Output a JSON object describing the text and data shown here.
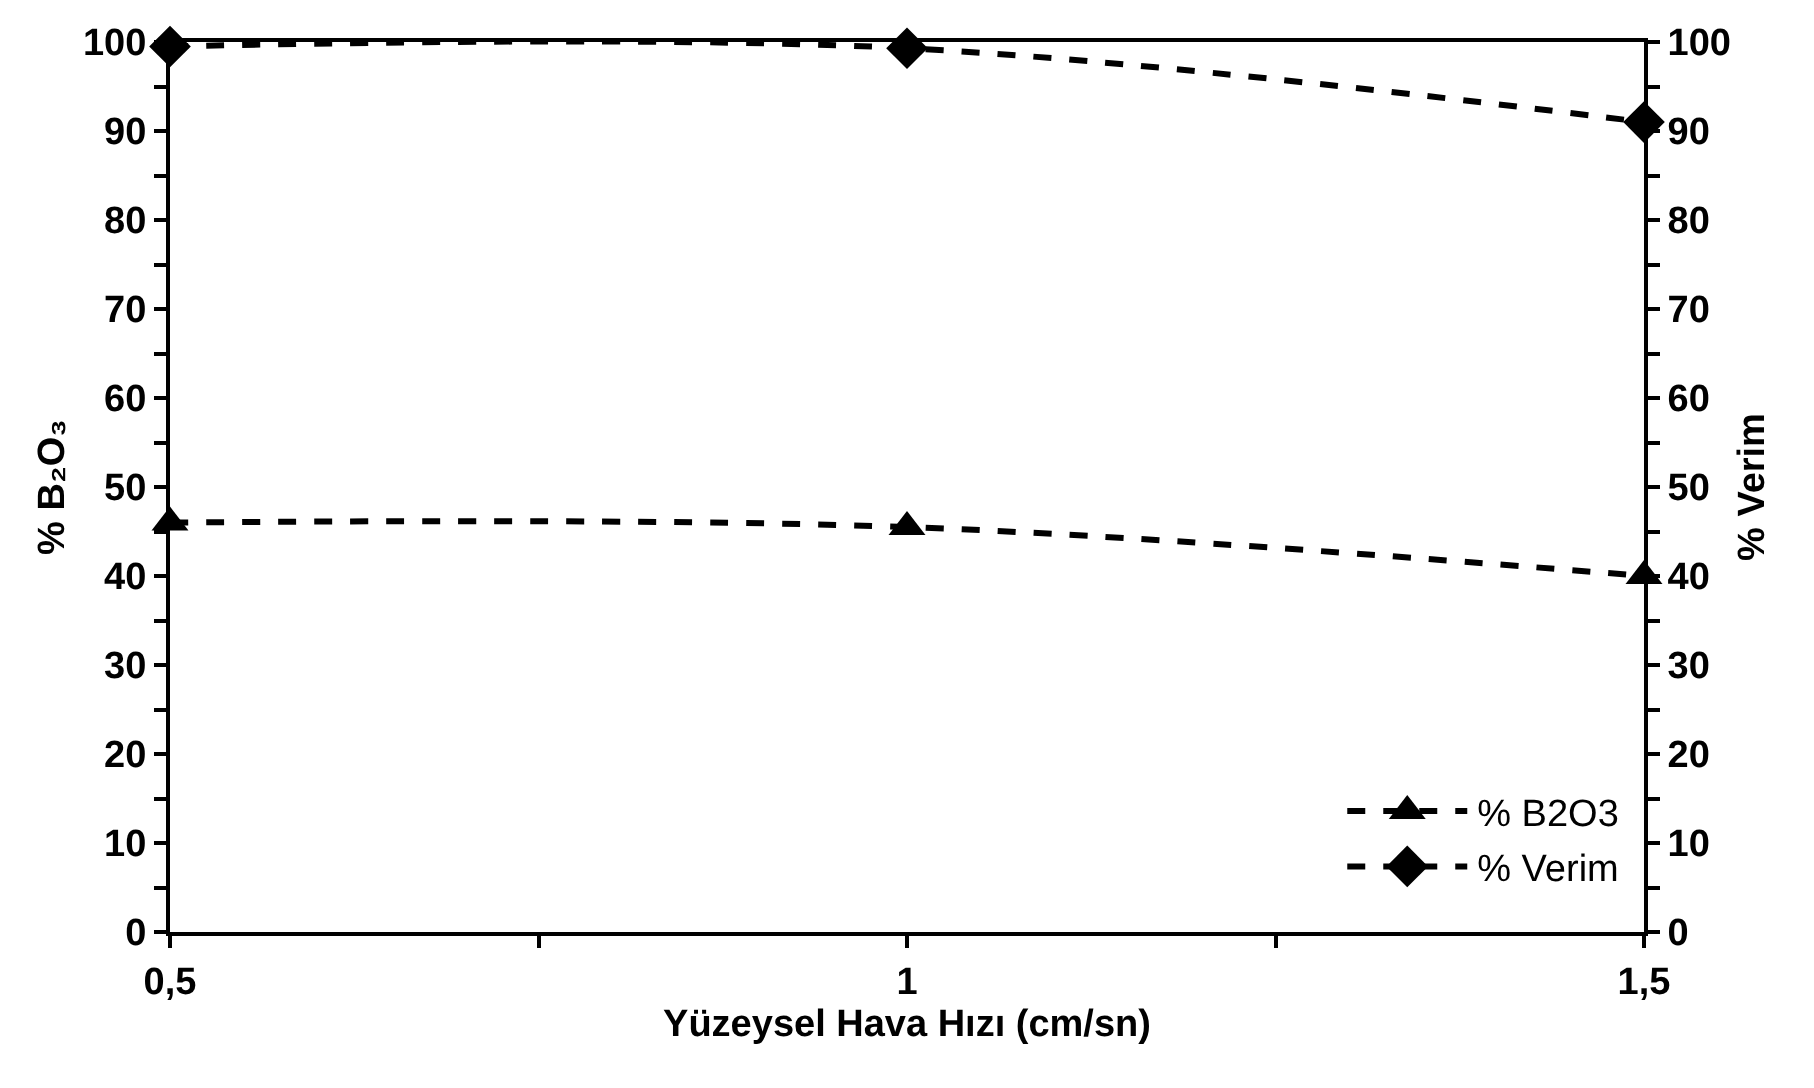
{
  "chart_data": {
    "type": "line",
    "xlabel": "Yüzeysel Hava Hızı (cm/sn)",
    "ylabel": "% B₂O₃",
    "y2label": "% Verim",
    "x": [
      0.5,
      1,
      1.5
    ],
    "xlim": [
      0.5,
      1.5
    ],
    "xticks": [
      {
        "value": 0.5,
        "label": "0,5"
      },
      {
        "value": 0.75,
        "label": null
      },
      {
        "value": 1,
        "label": "1"
      },
      {
        "value": 1.25,
        "label": null
      },
      {
        "value": 1.5,
        "label": "1,5"
      }
    ],
    "ylim": [
      0,
      100
    ],
    "yticks": [
      0,
      {
        "value": 5,
        "label": null
      },
      10,
      {
        "value": 15,
        "label": null
      },
      20,
      {
        "value": 25,
        "label": null
      },
      30,
      {
        "value": 35,
        "label": null
      },
      40,
      {
        "value": 45,
        "label": null
      },
      50,
      {
        "value": 55,
        "label": null
      },
      60,
      {
        "value": 65,
        "label": null
      },
      70,
      {
        "value": 75,
        "label": null
      },
      80,
      {
        "value": 85,
        "label": null
      },
      90,
      {
        "value": 95,
        "label": null
      },
      100
    ],
    "y2lim": [
      0,
      100
    ],
    "y2ticks": [
      0,
      {
        "value": 5,
        "label": null
      },
      10,
      {
        "value": 15,
        "label": null
      },
      20,
      {
        "value": 25,
        "label": null
      },
      30,
      {
        "value": 35,
        "label": null
      },
      40,
      {
        "value": 45,
        "label": null
      },
      50,
      {
        "value": 55,
        "label": null
      },
      60,
      {
        "value": 65,
        "label": null
      },
      70,
      {
        "value": 75,
        "label": null
      },
      80,
      {
        "value": 85,
        "label": null
      },
      90,
      {
        "value": 95,
        "label": null
      },
      100
    ],
    "series": [
      {
        "name": "% B2O3",
        "color": "#000000",
        "values": [
          46,
          45.5,
          40
        ],
        "marker": "triangle"
      },
      {
        "name": "% Verim",
        "color": "#000000",
        "values": [
          99.5,
          99.3,
          91
        ],
        "marker": "diamond",
        "axis": "y2"
      }
    ],
    "line_style": "dashed",
    "legend": "bottom right"
  }
}
